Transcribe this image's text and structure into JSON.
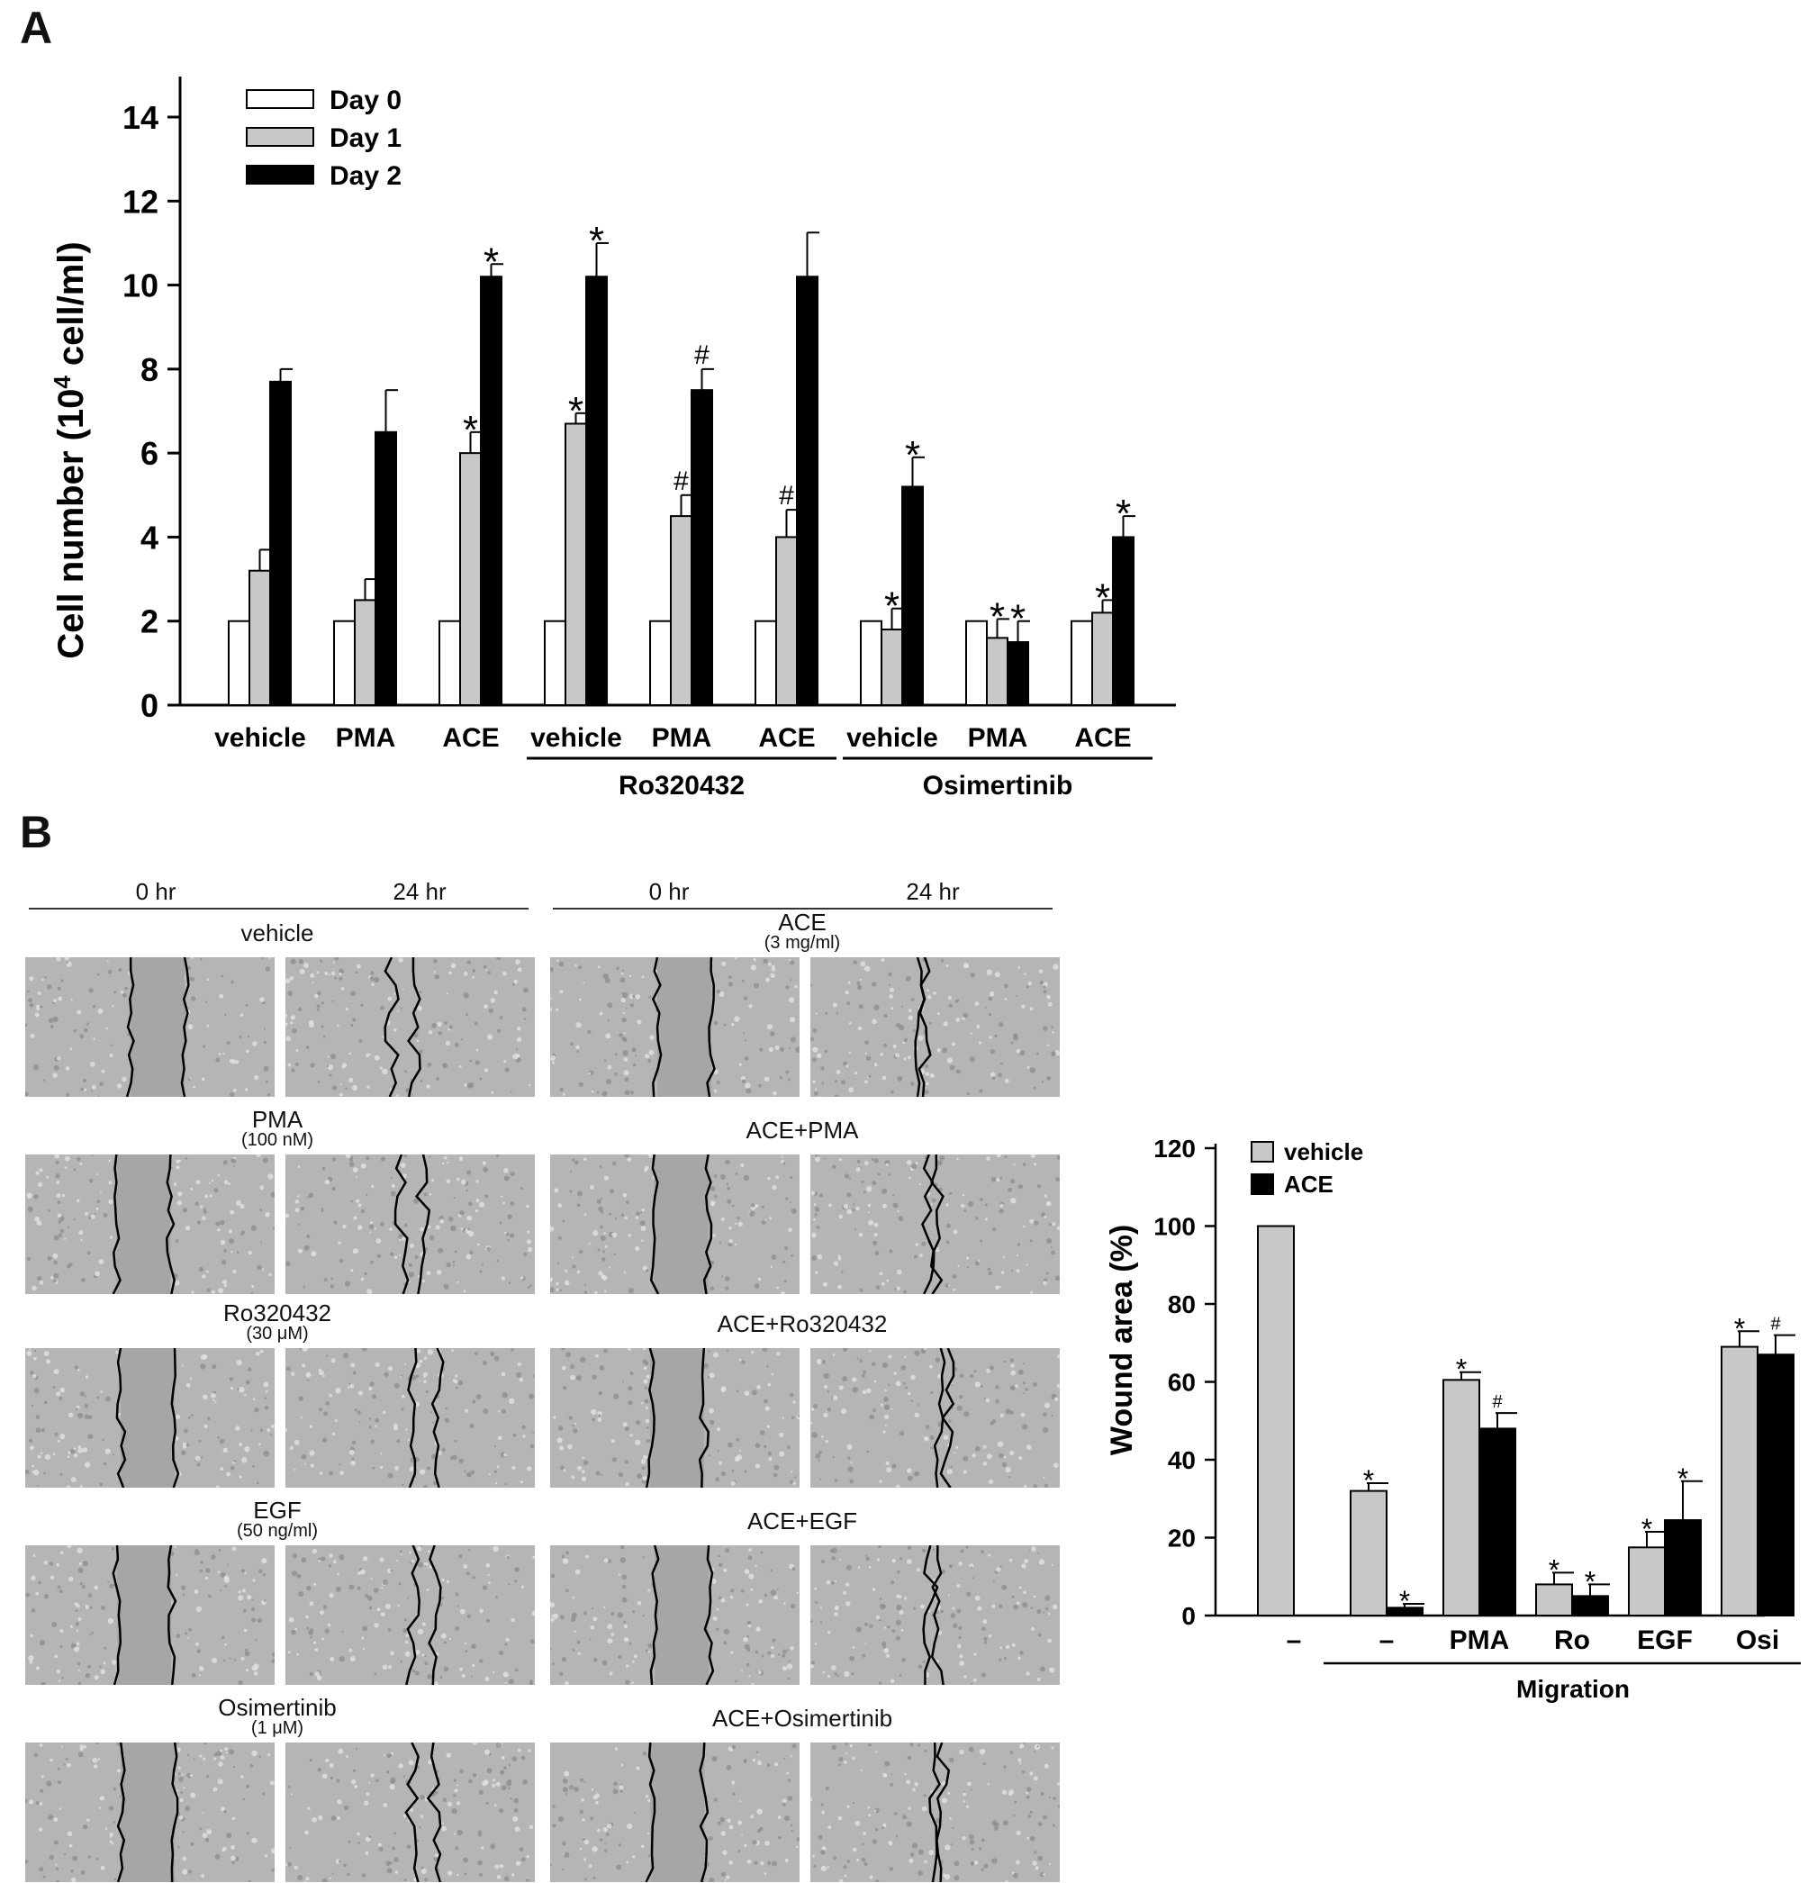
{
  "panels": {
    "a": "A",
    "b": "B"
  },
  "colors": {
    "day0": "#ffffff",
    "day1": "#c8c8c8",
    "day2": "#000000",
    "vehicle": "#c8c8c8",
    "ace": "#000000"
  },
  "chart_data": [
    {
      "type": "bar",
      "ylabel_main": "Cell number (10",
      "ylabel_sup": "4",
      "ylabel_tail": " cell/ml)",
      "ylim": [
        0,
        15
      ],
      "yticks": [
        "0",
        "2",
        "4",
        "6",
        "8",
        "10",
        "12",
        "14"
      ],
      "categories": [
        "vehicle",
        "PMA",
        "ACE",
        "vehicle",
        "PMA",
        "ACE",
        "vehicle",
        "PMA",
        "ACE"
      ],
      "groups": [
        {
          "label": "Ro320432",
          "from": 3,
          "to": 5
        },
        {
          "label": "Osimertinib",
          "from": 6,
          "to": 8
        }
      ],
      "legend_position": "top-left",
      "series": [
        {
          "name": "Day 0",
          "color": "#ffffff",
          "values": [
            2,
            2,
            2,
            2,
            2,
            2,
            2,
            2,
            2
          ],
          "errors": [
            0,
            0,
            0,
            0,
            0,
            0,
            0,
            0,
            0
          ],
          "marks": [
            "",
            "",
            "",
            "",
            "",
            "",
            "",
            "",
            ""
          ]
        },
        {
          "name": "Day 1",
          "color": "#c8c8c8",
          "values": [
            3.2,
            2.5,
            6.0,
            6.7,
            4.5,
            4.0,
            1.8,
            1.6,
            2.2
          ],
          "errors": [
            0.5,
            0.5,
            0.5,
            0.25,
            0.5,
            0.65,
            0.5,
            0.45,
            0.3
          ],
          "marks": [
            "",
            "",
            "*",
            "*",
            "#",
            "#",
            "*",
            "*",
            "*"
          ]
        },
        {
          "name": "Day 2",
          "color": "#000000",
          "values": [
            7.7,
            6.5,
            10.2,
            10.2,
            7.5,
            10.2,
            5.2,
            1.5,
            4.0
          ],
          "errors": [
            0.3,
            1.0,
            0.3,
            0.8,
            0.5,
            1.05,
            0.7,
            0.5,
            0.5
          ],
          "marks": [
            "",
            "",
            "*",
            "*",
            "#",
            "",
            "*",
            "*",
            "*"
          ]
        }
      ]
    },
    {
      "type": "bar",
      "ylabel": "Wound area (%)",
      "ylim": [
        0,
        120
      ],
      "yticks": [
        "0",
        "20",
        "40",
        "60",
        "80",
        "100",
        "120"
      ],
      "categories": [
        "–",
        "–",
        "PMA",
        "Ro",
        "EGF",
        "Osi"
      ],
      "group_label": "Migration",
      "legend_position": "top-left",
      "series": [
        {
          "name": "vehicle",
          "color": "#c8c8c8",
          "values": [
            100,
            32,
            60.5,
            8,
            17.5,
            69
          ],
          "errors": [
            0,
            2,
            2,
            3,
            4,
            4
          ],
          "marks": [
            "",
            "*",
            "*",
            "*",
            "*",
            "*"
          ]
        },
        {
          "name": "ACE",
          "color": "#000000",
          "values": [
            null,
            2,
            48,
            5,
            24.5,
            67
          ],
          "errors": [
            null,
            1,
            4,
            3,
            10,
            5
          ],
          "marks": [
            "",
            "*",
            "#",
            "*",
            "*",
            "#"
          ]
        }
      ]
    }
  ],
  "wound_assay": {
    "timepoints": [
      "0 hr",
      "24 hr",
      "0 hr",
      "24 hr"
    ],
    "left_conditions": [
      {
        "title": "vehicle",
        "sub": ""
      },
      {
        "title": "PMA",
        "sub": "(100 nM)"
      },
      {
        "title": "Ro320432",
        "sub": "(30 μM)"
      },
      {
        "title": "EGF",
        "sub": "(50 ng/ml)"
      },
      {
        "title": "Osimertinib",
        "sub": "(1 μM)"
      }
    ],
    "right_conditions": [
      {
        "title": "ACE",
        "sub": "(3 mg/ml)"
      },
      {
        "title": "ACE+PMA",
        "sub": ""
      },
      {
        "title": "ACE+Ro320432",
        "sub": ""
      },
      {
        "title": "ACE+EGF",
        "sub": ""
      },
      {
        "title": "ACE+Osimertinib",
        "sub": ""
      }
    ]
  }
}
